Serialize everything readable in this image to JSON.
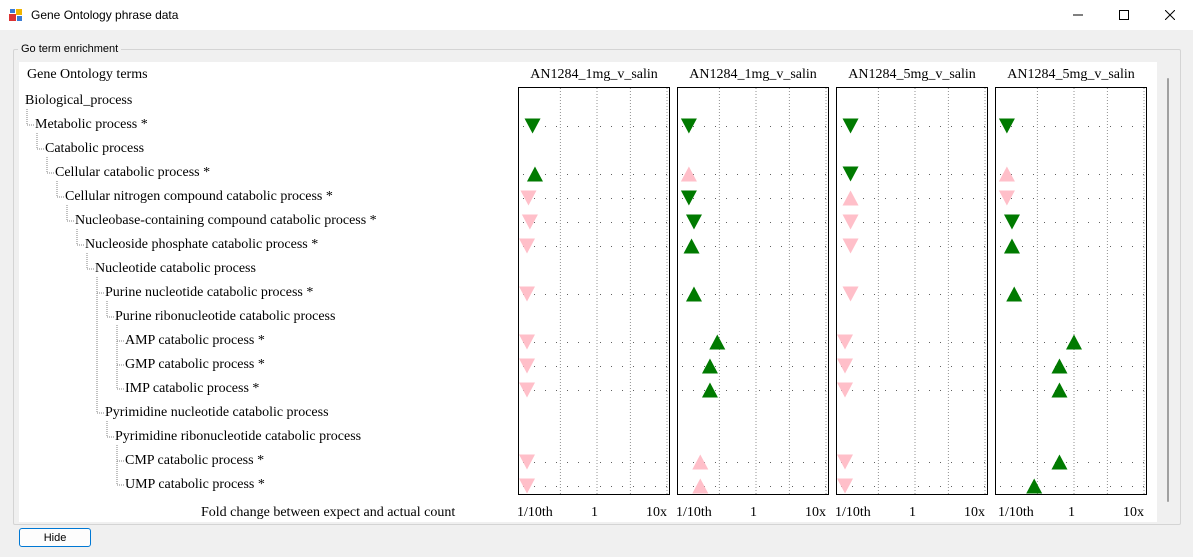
{
  "window": {
    "title": "Gene Ontology phrase data"
  },
  "group": {
    "label": "Go term enrichment"
  },
  "tree": {
    "header": "Gene Ontology terms",
    "items": [
      {
        "label": "Biological_process",
        "level": 0
      },
      {
        "label": "Metabolic process *",
        "level": 1
      },
      {
        "label": "Catabolic process",
        "level": 2
      },
      {
        "label": "Cellular catabolic process *",
        "level": 3
      },
      {
        "label": "Cellular nitrogen compound catabolic process *",
        "level": 4
      },
      {
        "label": "Nucleobase-containing compound catabolic process *",
        "level": 5
      },
      {
        "label": "Nucleoside phosphate catabolic process *",
        "level": 6
      },
      {
        "label": "Nucleotide catabolic process",
        "level": 7
      },
      {
        "label": "Purine nucleotide catabolic process *",
        "level": 8
      },
      {
        "label": "Purine ribonucleotide catabolic process",
        "level": 9
      },
      {
        "label": "AMP catabolic process *",
        "level": 10
      },
      {
        "label": "GMP catabolic process *",
        "level": 10
      },
      {
        "label": "IMP catabolic process *",
        "level": 10
      },
      {
        "label": "Pyrimidine nucleotide catabolic process",
        "level": 8
      },
      {
        "label": "Pyrimidine ribonucleotide catabolic process",
        "level": 9
      },
      {
        "label": "CMP catabolic process *",
        "level": 10
      },
      {
        "label": "UMP catabolic process *",
        "level": 10
      }
    ]
  },
  "footer_label": "Fold change between expect and actual count",
  "hide_button": "Hide",
  "chart_data": {
    "type": "scatter",
    "x_scale": "log",
    "tick_labels": [
      "1/10th",
      "1",
      "10x"
    ],
    "xlabel": "Fold change between expect and actual count",
    "colors": {
      "significant": "#007a00",
      "not_significant": "#ffbfc9"
    },
    "series": [
      {
        "name": "AN1284_1mg_v_salin",
        "points": [
          {
            "row": 1,
            "fold": 0.12,
            "dir": "down",
            "sig": true
          },
          {
            "row": 3,
            "fold": 0.13,
            "dir": "up",
            "sig": true
          },
          {
            "row": 4,
            "fold": 0.105,
            "dir": "down",
            "sig": false
          },
          {
            "row": 5,
            "fold": 0.11,
            "dir": "down",
            "sig": false
          },
          {
            "row": 6,
            "fold": 0.1,
            "dir": "down",
            "sig": false
          },
          {
            "row": 8,
            "fold": 0.1,
            "dir": "down",
            "sig": false
          },
          {
            "row": 10,
            "fold": 0.1,
            "dir": "down",
            "sig": false
          },
          {
            "row": 11,
            "fold": 0.1,
            "dir": "down",
            "sig": false
          },
          {
            "row": 12,
            "fold": 0.1,
            "dir": "down",
            "sig": false
          },
          {
            "row": 15,
            "fold": 0.1,
            "dir": "down",
            "sig": false
          },
          {
            "row": 16,
            "fold": 0.1,
            "dir": "down",
            "sig": false
          }
        ]
      },
      {
        "name": "AN1284_1mg_v_salin",
        "points": [
          {
            "row": 1,
            "fold": 0.11,
            "dir": "down",
            "sig": true
          },
          {
            "row": 3,
            "fold": 0.11,
            "dir": "up",
            "sig": false
          },
          {
            "row": 4,
            "fold": 0.11,
            "dir": "down",
            "sig": true
          },
          {
            "row": 5,
            "fold": 0.13,
            "dir": "down",
            "sig": true
          },
          {
            "row": 6,
            "fold": 0.12,
            "dir": "up",
            "sig": true
          },
          {
            "row": 8,
            "fold": 0.13,
            "dir": "up",
            "sig": true
          },
          {
            "row": 10,
            "fold": 0.28,
            "dir": "up",
            "sig": true
          },
          {
            "row": 11,
            "fold": 0.22,
            "dir": "up",
            "sig": true
          },
          {
            "row": 12,
            "fold": 0.22,
            "dir": "up",
            "sig": true
          },
          {
            "row": 15,
            "fold": 0.16,
            "dir": "up",
            "sig": false
          },
          {
            "row": 16,
            "fold": 0.16,
            "dir": "up",
            "sig": false
          }
        ]
      },
      {
        "name": "AN1284_5mg_v_salin",
        "points": [
          {
            "row": 1,
            "fold": 0.12,
            "dir": "down",
            "sig": true
          },
          {
            "row": 3,
            "fold": 0.12,
            "dir": "down",
            "sig": true
          },
          {
            "row": 4,
            "fold": 0.12,
            "dir": "up",
            "sig": false
          },
          {
            "row": 5,
            "fold": 0.12,
            "dir": "down",
            "sig": false
          },
          {
            "row": 6,
            "fold": 0.12,
            "dir": "down",
            "sig": false
          },
          {
            "row": 8,
            "fold": 0.12,
            "dir": "down",
            "sig": false
          },
          {
            "row": 10,
            "fold": 0.1,
            "dir": "down",
            "sig": false
          },
          {
            "row": 11,
            "fold": 0.1,
            "dir": "down",
            "sig": false
          },
          {
            "row": 12,
            "fold": 0.1,
            "dir": "down",
            "sig": false
          },
          {
            "row": 15,
            "fold": 0.1,
            "dir": "down",
            "sig": false
          },
          {
            "row": 16,
            "fold": 0.1,
            "dir": "down",
            "sig": false
          }
        ]
      },
      {
        "name": "AN1284_5mg_v_salin",
        "points": [
          {
            "row": 1,
            "fold": 0.11,
            "dir": "down",
            "sig": true
          },
          {
            "row": 3,
            "fold": 0.11,
            "dir": "up",
            "sig": false
          },
          {
            "row": 4,
            "fold": 0.11,
            "dir": "down",
            "sig": false
          },
          {
            "row": 5,
            "fold": 0.13,
            "dir": "down",
            "sig": true
          },
          {
            "row": 6,
            "fold": 0.13,
            "dir": "up",
            "sig": true
          },
          {
            "row": 8,
            "fold": 0.14,
            "dir": "up",
            "sig": true
          },
          {
            "row": 10,
            "fold": 1.0,
            "dir": "up",
            "sig": true
          },
          {
            "row": 11,
            "fold": 0.62,
            "dir": "up",
            "sig": true
          },
          {
            "row": 12,
            "fold": 0.62,
            "dir": "up",
            "sig": true
          },
          {
            "row": 15,
            "fold": 0.62,
            "dir": "up",
            "sig": true
          },
          {
            "row": 16,
            "fold": 0.27,
            "dir": "up",
            "sig": true
          }
        ]
      }
    ]
  }
}
